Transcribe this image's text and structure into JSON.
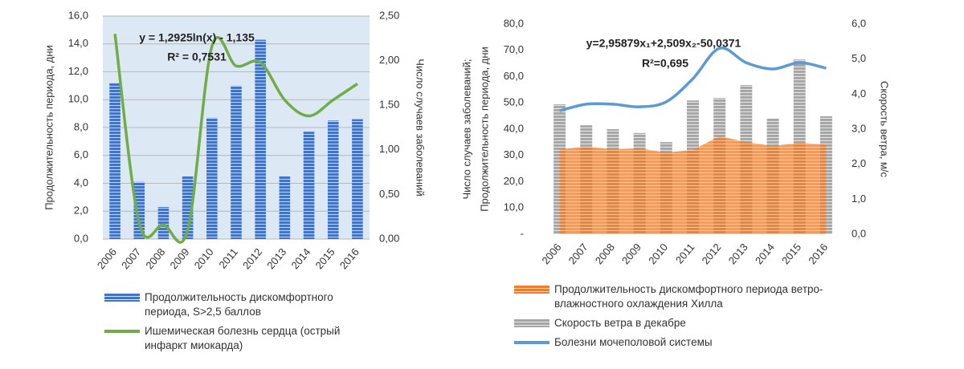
{
  "chart_data": [
    {
      "type": "combo",
      "ylabel": [
        "Продолжительность периода, дни"
      ],
      "y2label": "Число случаев заболеваний",
      "annotations": [
        "y = 1,2925ln(x) - 1,135",
        "R² = 0,7531"
      ],
      "categories": [
        "2006",
        "2007",
        "2008",
        "2009",
        "2010",
        "2011",
        "2012",
        "2013",
        "2014",
        "2015",
        "2016"
      ],
      "series": [
        {
          "name": "Продолжительность дискомфортного периода, S>2,5 баллов",
          "style": "bar",
          "axis": "y",
          "color": "#4472c4",
          "values": [
            11.2,
            4.1,
            2.3,
            4.5,
            8.7,
            11.0,
            14.3,
            4.5,
            7.7,
            8.5,
            8.6
          ]
        },
        {
          "name": "Ишемическая болезнь сердца (острый инфаркт миокарда)",
          "style": "line",
          "axis": "y2",
          "color": "#70ad47",
          "values": [
            2.3,
            0.18,
            0.16,
            0.1,
            2.16,
            1.94,
            1.98,
            1.56,
            1.38,
            1.56,
            1.74
          ]
        }
      ],
      "ylim": [
        0,
        16
      ],
      "yticks": [
        {
          "value": 0,
          "label": "0,0"
        },
        {
          "value": 2,
          "label": "2,0"
        },
        {
          "value": 4,
          "label": "4,0"
        },
        {
          "value": 6,
          "label": "6,0"
        },
        {
          "value": 8,
          "label": "8,0"
        },
        {
          "value": 10,
          "label": "10,0"
        },
        {
          "value": 12,
          "label": "12,0"
        },
        {
          "value": 14,
          "label": "14,0"
        },
        {
          "value": 16,
          "label": "16,0"
        }
      ],
      "y2lim": [
        0,
        2.5
      ],
      "y2ticks": [
        {
          "value": 0,
          "label": "0,00"
        },
        {
          "value": 0.5,
          "label": "0,50"
        },
        {
          "value": 1,
          "label": "1,00"
        },
        {
          "value": 1.5,
          "label": "1,50"
        },
        {
          "value": 2,
          "label": "2,00"
        },
        {
          "value": 2.5,
          "label": "2,50"
        }
      ],
      "grid": true,
      "plot_background": "#dce9f5"
    },
    {
      "type": "combo",
      "ylabel": [
        "Число случаев заболеваний;",
        "Продолжительность периода, дни"
      ],
      "y2label": "Скорость ветра, м/с",
      "annotations": [
        "y=2,95879x₁+2,509x₂-50,0371",
        "R²=0,695"
      ],
      "categories": [
        "2006",
        "2007",
        "2008",
        "2009",
        "2010",
        "2011",
        "2012",
        "2013",
        "2014",
        "2015",
        "2016"
      ],
      "series": [
        {
          "name": "Скорость ветра в декабре",
          "style": "bar",
          "axis": "y2",
          "color": "#a5a5a5",
          "values": [
            3.71,
            3.11,
            3.0,
            2.89,
            2.63,
            3.82,
            3.89,
            4.26,
            3.3,
            4.99,
            3.37
          ]
        },
        {
          "name": "Продолжительность дискомфортного периода ветро-влажностного охлаждения Хилла",
          "style": "area",
          "axis": "y",
          "color": "#ed7d31",
          "values": [
            32.4,
            33.3,
            32.4,
            32.7,
            31.1,
            32.1,
            37.3,
            35.1,
            33.6,
            34.8,
            34.2
          ]
        },
        {
          "name": "Болезни мочеполовой системы",
          "style": "line",
          "axis": "y",
          "color": "#5b9bd5",
          "values": [
            47.0,
            49.5,
            49.5,
            48.5,
            50.4,
            59.2,
            70.8,
            65.3,
            62.9,
            65.3,
            63.2
          ]
        }
      ],
      "legend_order": [
        1,
        0,
        2
      ],
      "ylim": [
        0,
        80
      ],
      "yticks": [
        {
          "value": 0,
          "label": "-"
        },
        {
          "value": 10,
          "label": "10,0"
        },
        {
          "value": 20,
          "label": "20,0"
        },
        {
          "value": 30,
          "label": "30,0"
        },
        {
          "value": 40,
          "label": "40,0"
        },
        {
          "value": 50,
          "label": "50,0"
        },
        {
          "value": 60,
          "label": "60,0"
        },
        {
          "value": 70,
          "label": "70,0"
        },
        {
          "value": 80,
          "label": "80,0"
        }
      ],
      "y2lim": [
        0,
        6
      ],
      "y2ticks": [
        {
          "value": 0,
          "label": "0,0"
        },
        {
          "value": 1,
          "label": "1,0"
        },
        {
          "value": 2,
          "label": "2,0"
        },
        {
          "value": 3,
          "label": "3,0"
        },
        {
          "value": 4,
          "label": "4,0"
        },
        {
          "value": 5,
          "label": "5,0"
        },
        {
          "value": 6,
          "label": "6,0"
        }
      ],
      "grid": false
    }
  ]
}
